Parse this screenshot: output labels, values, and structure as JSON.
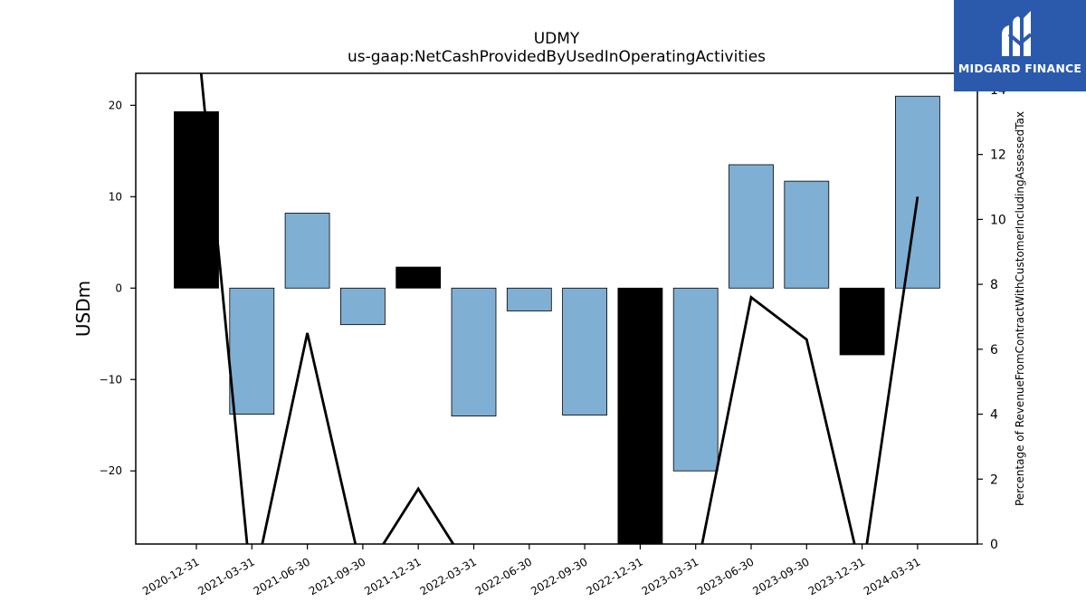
{
  "chart_data": {
    "type": "bar",
    "title": "UDMY",
    "subtitle": "us-gaap:NetCashProvidedByUsedInOperatingActivities",
    "ylabel": "USDm",
    "y2label": "Percentage of RevenueFromContractWithCustomerIncludingAssessedTax",
    "categories": [
      "2020-12-31",
      "2021-03-31",
      "2021-06-30",
      "2021-09-30",
      "2021-12-31",
      "2022-03-31",
      "2022-06-30",
      "2022-09-30",
      "2022-12-31",
      "2023-03-31",
      "2023-06-30",
      "2023-09-30",
      "2023-12-31",
      "2024-03-31"
    ],
    "series": [
      {
        "values": [
          19.3,
          -13.8,
          8.2,
          -4.0,
          2.3,
          -14.0,
          -2.5,
          -13.9,
          -28.0,
          -20.0,
          13.5,
          11.7,
          -7.3,
          21.0
        ],
        "colors": [
          "#000000",
          "#7fafd3",
          "#7fafd3",
          "#7fafd3",
          "#000000",
          "#7fafd3",
          "#7fafd3",
          "#7fafd3",
          "#000000",
          "#7fafd3",
          "#7fafd3",
          "#7fafd3",
          "#000000",
          "#7fafd3"
        ]
      },
      {
        "axis": "right",
        "type": "line",
        "values": [
          16.0,
          -1.5,
          6.5,
          -1.0,
          1.7,
          -1.0,
          -1.0,
          -1.0,
          -1.0,
          -1.0,
          7.6,
          6.3,
          -1.0,
          10.7
        ]
      }
    ],
    "ylim": [
      -28,
      23.5
    ],
    "y2lim": [
      0,
      14.5
    ],
    "yticks": [
      20,
      10,
      0,
      -10,
      -20
    ],
    "ytick_labels": [
      "20",
      "10",
      "0",
      "−10",
      "−20"
    ],
    "y2ticks": [
      0,
      2,
      4,
      6,
      8,
      10,
      12,
      14
    ],
    "y2tick_labels": [
      "0",
      "2",
      "4",
      "6",
      "8",
      "10",
      "12",
      "14"
    ],
    "grid": false,
    "legend": "none"
  },
  "logo": {
    "text": "MIDGARD FINANCE",
    "color": "#2b5aad"
  }
}
